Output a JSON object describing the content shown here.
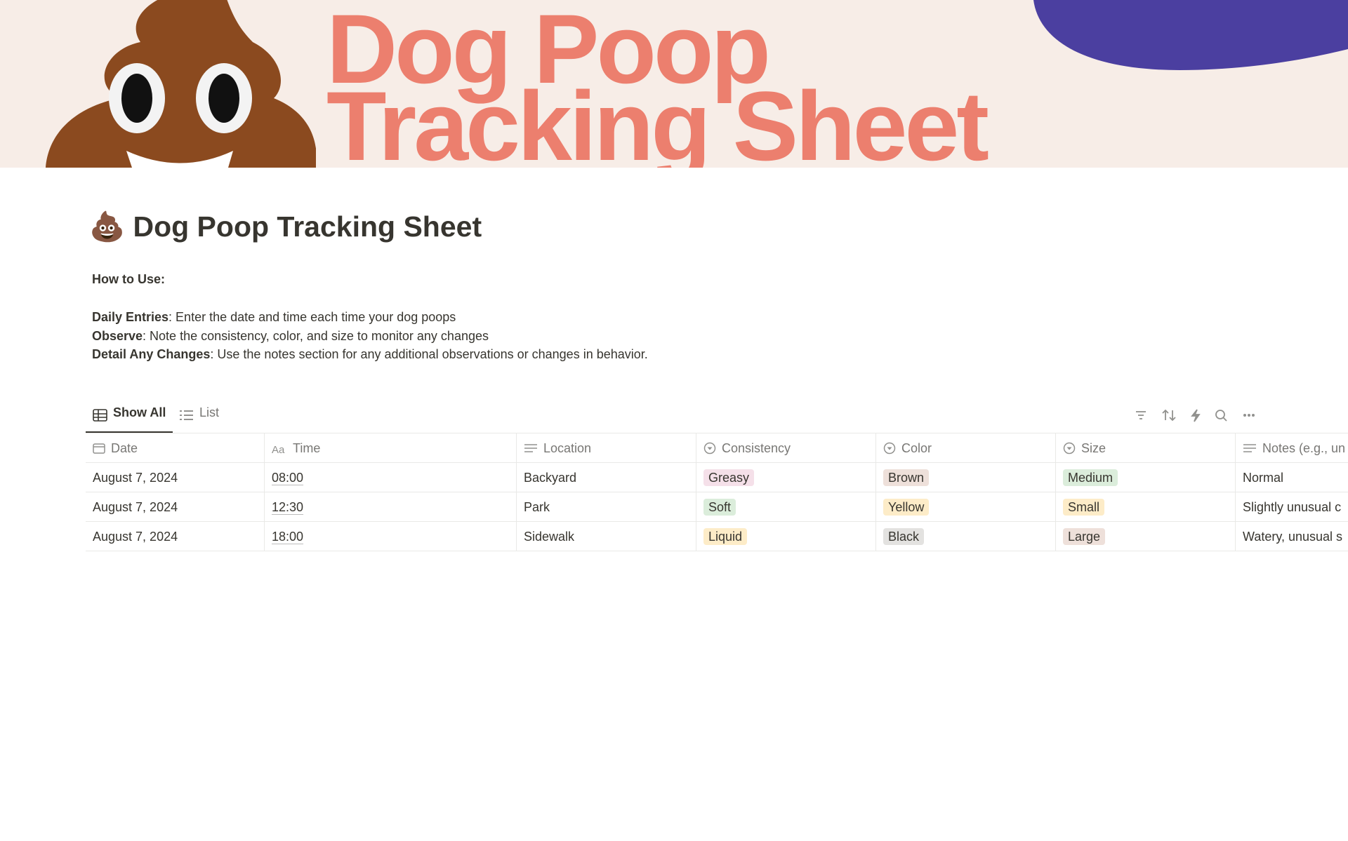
{
  "banner": {
    "line1": "Dog Poop",
    "line2": "Tracking Sheet"
  },
  "page": {
    "icon": "💩",
    "title": "Dog Poop Tracking Sheet"
  },
  "instructions": {
    "heading": "How to Use:",
    "items": [
      {
        "label": "Daily Entries",
        "text": ": Enter the date and time each time your dog poops"
      },
      {
        "label": "Observe",
        "text": ": Note the consistency, color, and size to monitor any changes"
      },
      {
        "label": "Detail Any Changes",
        "text": ": Use the notes section for any additional observations or changes in behavior."
      }
    ]
  },
  "tabs": [
    "Show All",
    "List"
  ],
  "table": {
    "columns": [
      "Date",
      "Time",
      "Location",
      "Consistency",
      "Color",
      "Size",
      "Notes (e.g., un"
    ],
    "rows": [
      [
        "August 7, 2024",
        "08:00",
        "Backyard",
        {
          "text": "Greasy",
          "color": "#f5e0e9"
        },
        {
          "text": "Brown",
          "color": "#eee0da"
        },
        {
          "text": "Medium",
          "color": "#dbeddb"
        },
        "Normal"
      ],
      [
        "August 7, 2024",
        "12:30",
        "Park",
        {
          "text": "Soft",
          "color": "#dbeddb"
        },
        {
          "text": "Yellow",
          "color": "#fdecc8"
        },
        {
          "text": "Small",
          "color": "#fdecc8"
        },
        "Slightly unusual c"
      ],
      [
        "August 7, 2024",
        "18:00",
        "Sidewalk",
        {
          "text": "Liquid",
          "color": "#fdecc8"
        },
        {
          "text": "Black",
          "color": "#e3e2e0"
        },
        {
          "text": "Large",
          "color": "#eee0da"
        },
        "Watery, unusual s"
      ]
    ]
  }
}
